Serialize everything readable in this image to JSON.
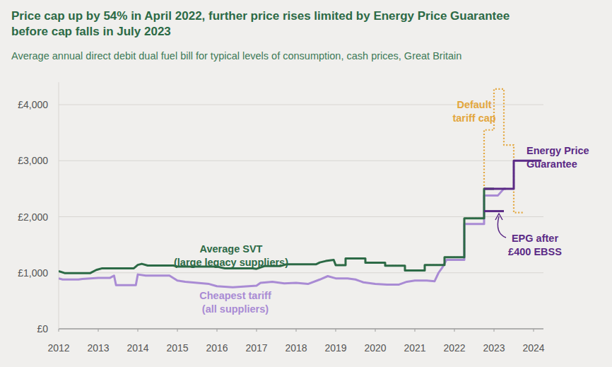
{
  "chart_data": {
    "type": "line",
    "title": "Price cap up by 54% in April 2022, further price rises limited by Energy Price Guarantee\nbefore cap falls in July 2023",
    "subtitle": "Average annual direct debit dual fuel bill for typical levels of consumption, cash prices, Great Britain",
    "xlim": [
      2012,
      2024.25
    ],
    "xticks": [
      2012,
      2013,
      2014,
      2015,
      2016,
      2017,
      2018,
      2019,
      2020,
      2021,
      2022,
      2023,
      2024
    ],
    "ylim": [
      0,
      4400
    ],
    "yticks": [
      {
        "value": 0,
        "label": "£0"
      },
      {
        "value": 1000,
        "label": "£1,000"
      },
      {
        "value": 2000,
        "label": "£2,000"
      },
      {
        "value": 3000,
        "label": "£3,000"
      },
      {
        "value": 4000,
        "label": "£4,000"
      }
    ],
    "grid": true,
    "series": [
      {
        "name": "Average SVT\n(large legacy suppliers)",
        "color": "#2c6a46",
        "line_style": "solid",
        "x": [
          2012.0,
          2012.15,
          2012.8,
          2012.95,
          2013.1,
          2013.9,
          2014.0,
          2014.1,
          2014.25,
          2014.9,
          2015.0,
          2016.0,
          2016.2,
          2016.9,
          2017.0,
          2017.2,
          2017.6,
          2017.75,
          2018.5,
          2018.6,
          2018.75,
          2018.95,
          2019.0,
          2019.25,
          2019.25,
          2019.75,
          2019.75,
          2020.25,
          2020.25,
          2020.75,
          2020.75,
          2021.25,
          2021.25,
          2021.75,
          2021.75,
          2022.25,
          2022.25,
          2022.75,
          2022.75,
          2023.0
        ],
        "values": [
          1030,
          995,
          995,
          1050,
          1080,
          1080,
          1140,
          1160,
          1130,
          1130,
          1110,
          1110,
          1080,
          1080,
          1070,
          1120,
          1120,
          1150,
          1150,
          1185,
          1210,
          1230,
          1137,
          1137,
          1254,
          1254,
          1179,
          1179,
          1126,
          1126,
          1042,
          1042,
          1138,
          1138,
          1277,
          1277,
          1971,
          1971,
          2500,
          2500
        ]
      },
      {
        "name": "Cheapest tariff\n(all suppliers)",
        "color": "#a98bd4",
        "line_style": "solid",
        "x": [
          2012.0,
          2012.1,
          2012.5,
          2012.6,
          2013.0,
          2013.3,
          2013.4,
          2013.45,
          2013.95,
          2014.0,
          2014.2,
          2014.8,
          2015.0,
          2015.2,
          2015.8,
          2016.0,
          2016.4,
          2016.8,
          2017.0,
          2017.1,
          2017.4,
          2017.7,
          2018.0,
          2018.3,
          2018.6,
          2018.8,
          2019.0,
          2019.3,
          2019.5,
          2019.7,
          2020.0,
          2020.3,
          2020.6,
          2020.8,
          2021.0,
          2021.3,
          2021.5,
          2021.6,
          2021.7,
          2021.8,
          2022.25,
          2022.25,
          2022.75,
          2022.75,
          2023.1,
          2023.25,
          2023.3
        ],
        "values": [
          900,
          880,
          880,
          890,
          910,
          910,
          950,
          780,
          780,
          970,
          950,
          950,
          860,
          840,
          800,
          760,
          740,
          760,
          770,
          820,
          840,
          810,
          820,
          800,
          880,
          940,
          900,
          900,
          880,
          830,
          800,
          790,
          790,
          840,
          860,
          860,
          850,
          1000,
          1100,
          1230,
          1230,
          1870,
          1870,
          2380,
          2380,
          2500,
          2500
        ]
      },
      {
        "name": "Default\ntariff cap",
        "color": "#e3a63c",
        "line_style": "dotted",
        "x": [
          2019.0,
          2019.25,
          2019.25,
          2019.75,
          2019.75,
          2020.25,
          2020.25,
          2020.75,
          2020.75,
          2021.25,
          2021.25,
          2021.75,
          2021.75,
          2022.25,
          2022.25,
          2022.75,
          2022.75,
          2023.0,
          2023.0,
          2023.25,
          2023.25,
          2023.5,
          2023.5,
          2023.75
        ],
        "values": [
          1137,
          1137,
          1254,
          1254,
          1179,
          1179,
          1126,
          1126,
          1042,
          1042,
          1138,
          1138,
          1277,
          1277,
          1971,
          1971,
          3549,
          3549,
          4279,
          4279,
          3280,
          3280,
          2074,
          2074
        ]
      },
      {
        "name": "Energy Price\nGuarantee",
        "color": "#5b2a86",
        "line_style": "solid",
        "x": [
          2022.75,
          2023.5,
          2023.5,
          2024.2
        ],
        "values": [
          2500,
          2500,
          3000,
          3000
        ]
      },
      {
        "name": "EPG after\n£400 EBSS",
        "color": "#5b2a86",
        "line_style": "solid",
        "x": [
          2022.75,
          2023.25
        ],
        "values": [
          2100,
          2100
        ]
      }
    ]
  }
}
